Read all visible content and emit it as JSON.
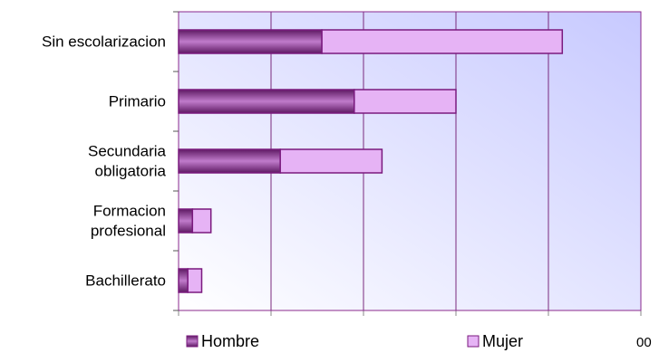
{
  "chart_data": {
    "type": "bar",
    "orientation": "horizontal",
    "stacked": true,
    "title": "",
    "xlabel": "",
    "ylabel": "",
    "categories": [
      [
        "Sin escolarizacion"
      ],
      [
        "Primario"
      ],
      [
        "Secundaria",
        "obligatoria"
      ],
      [
        "Formacion",
        "profesional"
      ],
      [
        "Bachillerato"
      ]
    ],
    "series": [
      {
        "name": "Hombre",
        "values": [
          31,
          38,
          22,
          3,
          2
        ]
      },
      {
        "name": "Mujer",
        "values": [
          52,
          22,
          22,
          4,
          3
        ]
      }
    ],
    "xlim": [
      0,
      100
    ],
    "visible_tick_label": "00",
    "grid": "vertical",
    "legend": "bottom",
    "colors": {
      "hombre_dark": "#5e1a63",
      "hombre_light": "#c07bcb",
      "mujer_fill": "#e6b3f5",
      "bar_stroke": "#7a1a7e",
      "plot_border": "#8b2a8e",
      "plot_bg_top": "#c7c9ff",
      "plot_bg_bottom": "#ffffff",
      "gridline": "#7a2a7e"
    }
  }
}
